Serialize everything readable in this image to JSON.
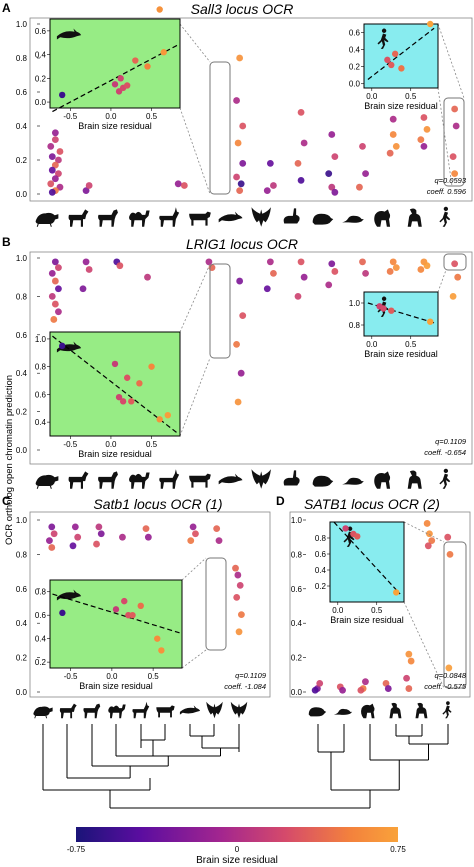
{
  "figure": {
    "y_axis_label": "OCR ortholog open chromatin prediction",
    "colorbar": {
      "label": "Brain size residual",
      "min": -0.75,
      "max": 0.75,
      "ticks": [
        "-0.75",
        "0",
        "0.75"
      ],
      "colors": [
        "#1a1478",
        "#5b0da0",
        "#a3268f",
        "#d54a6b",
        "#f3813d",
        "#f9a23a"
      ]
    },
    "main_y_ticks": [
      "0.0",
      "0.2",
      "0.4",
      "0.6",
      "0.8",
      "1.0"
    ],
    "inset_x_ticks_wide": [
      "-0.5",
      "0.0",
      "0.5"
    ],
    "inset_x_ticks_small": [
      "0.0",
      "0.5"
    ],
    "inset_x_label": "Brain size residual",
    "inset_colors": {
      "green": "#97ec85",
      "cyan": "#88ecef"
    },
    "silhouette_icons": [
      "rodent-icon",
      "horse-icon",
      "bovid-icon",
      "camel-icon",
      "antelope-icon",
      "cow-icon",
      "dolphin-icon",
      "bat-icon",
      "rabbit-icon",
      "hamster-icon",
      "mouse-icon",
      "lemur-icon",
      "monkey-icon",
      "human-icon"
    ]
  },
  "chart_data": [
    {
      "panel": "A",
      "type": "scatter",
      "title": "Sall3 locus OCR",
      "ylim": [
        0,
        1
      ],
      "q": "q=0.0593",
      "coeff": "coeff. 0.596",
      "points": [
        {
          "x": 1.0,
          "y": 0.36,
          "r": -0.2
        },
        {
          "x": 1.0,
          "y": 0.32,
          "r": 0.1
        },
        {
          "x": 0.85,
          "y": 0.28,
          "r": -0.1
        },
        {
          "x": 1.15,
          "y": 0.25,
          "r": 0.2
        },
        {
          "x": 0.9,
          "y": 0.22,
          "r": -0.3
        },
        {
          "x": 1.1,
          "y": 0.2,
          "r": 0.0
        },
        {
          "x": 1.0,
          "y": 0.17,
          "r": 0.3
        },
        {
          "x": 0.9,
          "y": 0.14,
          "r": -0.4
        },
        {
          "x": 1.1,
          "y": 0.12,
          "r": 0.1
        },
        {
          "x": 1.0,
          "y": 0.09,
          "r": -0.2
        },
        {
          "x": 0.85,
          "y": 0.06,
          "r": 0.2
        },
        {
          "x": 1.15,
          "y": 0.04,
          "r": -0.1
        },
        {
          "x": 1.0,
          "y": 0.02,
          "r": 0.4
        },
        {
          "x": 0.9,
          "y": 0.01,
          "r": -0.5
        },
        {
          "x": 2.0,
          "y": 0.02,
          "r": -0.3
        },
        {
          "x": 2.1,
          "y": 0.05,
          "r": 0.1
        },
        {
          "x": 5.0,
          "y": 0.06,
          "r": -0.2
        },
        {
          "x": 5.2,
          "y": 0.05,
          "r": 0.2
        },
        {
          "x": 7.0,
          "y": 0.8,
          "r": 0.6
        },
        {
          "x": 6.9,
          "y": 0.55,
          "r": -0.1
        },
        {
          "x": 7.1,
          "y": 0.4,
          "r": 0.2
        },
        {
          "x": 6.95,
          "y": 0.3,
          "r": 0.5
        },
        {
          "x": 7.1,
          "y": 0.18,
          "r": -0.3
        },
        {
          "x": 6.9,
          "y": 0.1,
          "r": 0.1
        },
        {
          "x": 7.05,
          "y": 0.06,
          "r": -0.6
        },
        {
          "x": 7.0,
          "y": 0.02,
          "r": 0.3
        },
        {
          "x": 8.0,
          "y": 0.18,
          "r": -0.4
        },
        {
          "x": 8.1,
          "y": 0.05,
          "r": 0.0
        },
        {
          "x": 7.9,
          "y": 0.02,
          "r": -0.2
        },
        {
          "x": 9.0,
          "y": 0.48,
          "r": 0.2
        },
        {
          "x": 9.1,
          "y": 0.3,
          "r": -0.1
        },
        {
          "x": 8.9,
          "y": 0.18,
          "r": 0.3
        },
        {
          "x": 9.0,
          "y": 0.08,
          "r": -0.5
        },
        {
          "x": 10.0,
          "y": 0.35,
          "r": -0.2
        },
        {
          "x": 10.1,
          "y": 0.22,
          "r": 0.1
        },
        {
          "x": 9.9,
          "y": 0.12,
          "r": -0.6
        },
        {
          "x": 10.0,
          "y": 0.04,
          "r": 0.0
        },
        {
          "x": 10.1,
          "y": 0.01,
          "r": -0.3
        },
        {
          "x": 11.0,
          "y": 0.28,
          "r": 0.1
        },
        {
          "x": 11.1,
          "y": 0.12,
          "r": -0.2
        },
        {
          "x": 10.9,
          "y": 0.04,
          "r": 0.3
        },
        {
          "x": 12.0,
          "y": 0.35,
          "r": 0.5
        },
        {
          "x": 12.1,
          "y": 0.28,
          "r": 0.6
        },
        {
          "x": 11.9,
          "y": 0.24,
          "r": 0.3
        },
        {
          "x": 12.0,
          "y": 0.44,
          "r": -0.1
        },
        {
          "x": 13.0,
          "y": 0.45,
          "r": 0.2
        },
        {
          "x": 13.1,
          "y": 0.38,
          "r": 0.6
        },
        {
          "x": 12.9,
          "y": 0.32,
          "r": 0.4
        },
        {
          "x": 13.0,
          "y": 0.28,
          "r": -0.2
        },
        {
          "x": 14.0,
          "y": 0.5,
          "r": 0.3
        },
        {
          "x": 14.05,
          "y": 0.4,
          "r": -0.1
        },
        {
          "x": 13.95,
          "y": 0.22,
          "r": 0.2
        },
        {
          "x": 14.0,
          "y": 0.12,
          "r": 0.5
        }
      ]
    },
    {
      "panel": "A-inset-left",
      "type": "scatter",
      "xlabel": "Brain size residual",
      "xlim": [
        -0.75,
        0.85
      ],
      "ylim": [
        -0.05,
        0.7
      ],
      "y_ticks": [
        "0.0",
        "0.2",
        "0.4",
        "0.6"
      ],
      "points": [
        {
          "x": -0.6,
          "y": 0.06,
          "r": -0.6
        },
        {
          "x": 0.05,
          "y": 0.15,
          "r": 0.05
        },
        {
          "x": 0.1,
          "y": 0.09,
          "r": 0.1
        },
        {
          "x": 0.15,
          "y": 0.12,
          "r": 0.15
        },
        {
          "x": 0.12,
          "y": 0.2,
          "r": 0.12
        },
        {
          "x": 0.2,
          "y": 0.14,
          "r": 0.2
        },
        {
          "x": 0.3,
          "y": 0.35,
          "r": 0.3
        },
        {
          "x": 0.45,
          "y": 0.3,
          "r": 0.45
        },
        {
          "x": 0.6,
          "y": 0.78,
          "r": 0.6
        },
        {
          "x": 0.65,
          "y": 0.42,
          "r": 0.65
        }
      ],
      "fit_line": {
        "x": [
          -0.72,
          0.82
        ],
        "y": [
          -0.08,
          0.48
        ]
      }
    },
    {
      "panel": "A-inset-right",
      "type": "scatter",
      "xlabel": "Brain size residual",
      "xlim": [
        -0.1,
        0.85
      ],
      "ylim": [
        -0.05,
        0.7
      ],
      "y_ticks": [
        "0.0",
        "0.2",
        "0.4",
        "0.6"
      ],
      "points": [
        {
          "x": 0.2,
          "y": 0.28,
          "r": 0.2
        },
        {
          "x": 0.25,
          "y": 0.22,
          "r": 0.25
        },
        {
          "x": 0.3,
          "y": 0.35,
          "r": 0.3
        },
        {
          "x": 0.38,
          "y": 0.18,
          "r": 0.38
        },
        {
          "x": 0.75,
          "y": 0.7,
          "r": 0.75
        }
      ],
      "fit_line": {
        "x": [
          -0.05,
          0.8
        ],
        "y": [
          0.05,
          0.65
        ]
      }
    },
    {
      "panel": "B",
      "type": "scatter",
      "title": "LRIG1 locus OCR",
      "ylim": [
        0,
        1
      ],
      "q": "q=0.1109",
      "coeff": "coeff. -0.654",
      "points": [
        {
          "x": 1.0,
          "y": 0.98,
          "r": -0.3
        },
        {
          "x": 1.1,
          "y": 0.95,
          "r": 0.1
        },
        {
          "x": 0.9,
          "y": 0.92,
          "r": -0.2
        },
        {
          "x": 1.0,
          "y": 0.88,
          "r": 0.3
        },
        {
          "x": 1.1,
          "y": 0.84,
          "r": -0.4
        },
        {
          "x": 0.9,
          "y": 0.8,
          "r": 0.0
        },
        {
          "x": 1.0,
          "y": 0.76,
          "r": 0.2
        },
        {
          "x": 1.1,
          "y": 0.72,
          "r": -0.1
        },
        {
          "x": 0.95,
          "y": 0.68,
          "r": 0.4
        },
        {
          "x": 2.0,
          "y": 0.98,
          "r": -0.2
        },
        {
          "x": 2.1,
          "y": 0.94,
          "r": 0.1
        },
        {
          "x": 1.9,
          "y": 0.84,
          "r": -0.3
        },
        {
          "x": 3.0,
          "y": 0.98,
          "r": -0.5
        },
        {
          "x": 3.1,
          "y": 0.96,
          "r": 0.2
        },
        {
          "x": 4.0,
          "y": 0.9,
          "r": 0.0
        },
        {
          "x": 6.0,
          "y": 0.98,
          "r": -0.1
        },
        {
          "x": 6.1,
          "y": 0.95,
          "r": 0.3
        },
        {
          "x": 7.0,
          "y": 0.88,
          "r": -0.3
        },
        {
          "x": 7.1,
          "y": 0.7,
          "r": 0.2
        },
        {
          "x": 6.9,
          "y": 0.55,
          "r": 0.4
        },
        {
          "x": 7.05,
          "y": 0.4,
          "r": -0.2
        },
        {
          "x": 6.95,
          "y": 0.25,
          "r": 0.6
        },
        {
          "x": 8.0,
          "y": 0.98,
          "r": -0.1
        },
        {
          "x": 8.1,
          "y": 0.92,
          "r": 0.3
        },
        {
          "x": 7.9,
          "y": 0.84,
          "r": -0.4
        },
        {
          "x": 9.0,
          "y": 0.98,
          "r": 0.2
        },
        {
          "x": 9.1,
          "y": 0.9,
          "r": -0.2
        },
        {
          "x": 8.9,
          "y": 0.8,
          "r": 0.1
        },
        {
          "x": 10.0,
          "y": 0.97,
          "r": -0.3
        },
        {
          "x": 10.1,
          "y": 0.93,
          "r": 0.2
        },
        {
          "x": 9.9,
          "y": 0.86,
          "r": -0.1
        },
        {
          "x": 11.0,
          "y": 0.98,
          "r": 0.3
        },
        {
          "x": 11.1,
          "y": 0.92,
          "r": 0.0
        },
        {
          "x": 12.0,
          "y": 0.98,
          "r": 0.5
        },
        {
          "x": 12.1,
          "y": 0.95,
          "r": 0.6
        },
        {
          "x": 11.9,
          "y": 0.93,
          "r": 0.4
        },
        {
          "x": 13.0,
          "y": 0.98,
          "r": 0.6
        },
        {
          "x": 13.1,
          "y": 0.96,
          "r": 0.7
        },
        {
          "x": 12.9,
          "y": 0.94,
          "r": 0.5
        },
        {
          "x": 14.0,
          "y": 0.97,
          "r": 0.2
        },
        {
          "x": 14.1,
          "y": 0.9,
          "r": 0.4
        },
        {
          "x": 13.95,
          "y": 0.8,
          "r": 0.7
        }
      ]
    },
    {
      "panel": "B-inset-left",
      "type": "scatter",
      "xlabel": "Brain size residual",
      "xlim": [
        -0.75,
        0.85
      ],
      "ylim": [
        0.3,
        1.05
      ],
      "y_ticks": [
        "0.4",
        "0.6",
        "0.8",
        "1.0"
      ],
      "points": [
        {
          "x": -0.6,
          "y": 0.95,
          "r": -0.6
        },
        {
          "x": 0.05,
          "y": 0.82,
          "r": 0.05
        },
        {
          "x": 0.1,
          "y": 0.58,
          "r": 0.1
        },
        {
          "x": 0.15,
          "y": 0.55,
          "r": 0.15
        },
        {
          "x": 0.2,
          "y": 0.72,
          "r": 0.2
        },
        {
          "x": 0.25,
          "y": 0.55,
          "r": 0.25
        },
        {
          "x": 0.35,
          "y": 0.68,
          "r": 0.35
        },
        {
          "x": 0.5,
          "y": 0.8,
          "r": 0.5
        },
        {
          "x": 0.6,
          "y": 0.42,
          "r": 0.6
        },
        {
          "x": 0.7,
          "y": 0.45,
          "r": 0.7
        }
      ],
      "fit_line": {
        "x": [
          -0.72,
          0.82
        ],
        "y": [
          1.02,
          0.32
        ]
      }
    },
    {
      "panel": "B-inset-right",
      "type": "scatter",
      "xlabel": "Brain size residual",
      "xlim": [
        -0.1,
        0.85
      ],
      "ylim": [
        0.7,
        1.1
      ],
      "y_ticks": [
        "0.8",
        "1.0"
      ],
      "points": [
        {
          "x": 0.1,
          "y": 0.97,
          "r": 0.1
        },
        {
          "x": 0.15,
          "y": 0.95,
          "r": 0.15
        },
        {
          "x": 0.25,
          "y": 0.93,
          "r": 0.25
        },
        {
          "x": 0.75,
          "y": 0.83,
          "r": 0.75
        }
      ],
      "fit_line": {
        "x": [
          -0.05,
          0.8
        ],
        "y": [
          1.0,
          0.82
        ]
      }
    },
    {
      "panel": "C",
      "type": "scatter",
      "title": "Satb1 locus OCR (1)",
      "ylim": [
        0,
        1
      ],
      "q": "q=0.1109",
      "coeff": "coeff. -1.084",
      "points": [
        {
          "x": 1.0,
          "y": 0.96,
          "r": -0.3
        },
        {
          "x": 1.1,
          "y": 0.92,
          "r": 0.1
        },
        {
          "x": 0.9,
          "y": 0.88,
          "r": -0.2
        },
        {
          "x": 1.0,
          "y": 0.84,
          "r": 0.3
        },
        {
          "x": 2.0,
          "y": 0.96,
          "r": -0.2
        },
        {
          "x": 2.1,
          "y": 0.9,
          "r": 0.1
        },
        {
          "x": 1.9,
          "y": 0.85,
          "r": -0.4
        },
        {
          "x": 3.0,
          "y": 0.96,
          "r": 0.0
        },
        {
          "x": 3.1,
          "y": 0.92,
          "r": -0.3
        },
        {
          "x": 2.9,
          "y": 0.86,
          "r": 0.2
        },
        {
          "x": 4.0,
          "y": 0.9,
          "r": -0.1
        },
        {
          "x": 5.0,
          "y": 0.95,
          "r": 0.3
        },
        {
          "x": 5.1,
          "y": 0.9,
          "r": -0.2
        },
        {
          "x": 7.0,
          "y": 0.96,
          "r": -0.2
        },
        {
          "x": 7.1,
          "y": 0.92,
          "r": 0.2
        },
        {
          "x": 6.9,
          "y": 0.88,
          "r": 0.4
        },
        {
          "x": 8.0,
          "y": 0.95,
          "r": 0.3
        },
        {
          "x": 8.1,
          "y": 0.88,
          "r": -0.1
        },
        {
          "x": 8.8,
          "y": 0.72,
          "r": 0.3
        },
        {
          "x": 8.9,
          "y": 0.68,
          "r": -0.1
        },
        {
          "x": 9.0,
          "y": 0.62,
          "r": 0.1
        },
        {
          "x": 8.85,
          "y": 0.55,
          "r": 0.2
        },
        {
          "x": 9.05,
          "y": 0.45,
          "r": 0.4
        },
        {
          "x": 8.95,
          "y": 0.35,
          "r": 0.6
        }
      ]
    },
    {
      "panel": "C-inset",
      "type": "scatter",
      "xlabel": "Brain size residual",
      "xlim": [
        -0.75,
        0.85
      ],
      "ylim": [
        0.15,
        0.9
      ],
      "y_ticks": [
        "0.2",
        "0.4",
        "0.6",
        "0.8"
      ],
      "points": [
        {
          "x": -0.6,
          "y": 0.62,
          "r": -0.6
        },
        {
          "x": 0.05,
          "y": 0.65,
          "r": 0.05
        },
        {
          "x": 0.15,
          "y": 0.72,
          "r": 0.15
        },
        {
          "x": 0.2,
          "y": 0.6,
          "r": 0.2
        },
        {
          "x": 0.25,
          "y": 0.6,
          "r": 0.25
        },
        {
          "x": 0.35,
          "y": 0.68,
          "r": 0.35
        },
        {
          "x": 0.55,
          "y": 0.4,
          "r": 0.55
        },
        {
          "x": 0.6,
          "y": 0.3,
          "r": 0.6
        }
      ],
      "fit_line": {
        "x": [
          -0.72,
          0.82
        ],
        "y": [
          0.78,
          0.45
        ]
      }
    },
    {
      "panel": "D",
      "type": "scatter",
      "title": "SATB1 locus OCR (2)",
      "ylim": [
        0,
        1
      ],
      "q": "q=0.0848",
      "coeff": "coeff. -0.575",
      "points": [
        {
          "x": 1.0,
          "y": 0.02,
          "r": -0.3
        },
        {
          "x": 1.1,
          "y": 0.05,
          "r": 0.1
        },
        {
          "x": 0.9,
          "y": 0.01,
          "r": -0.5
        },
        {
          "x": 2.0,
          "y": 0.03,
          "r": 0.2
        },
        {
          "x": 2.1,
          "y": 0.01,
          "r": -0.2
        },
        {
          "x": 3.0,
          "y": 0.02,
          "r": 0.4
        },
        {
          "x": 3.1,
          "y": 0.06,
          "r": -0.1
        },
        {
          "x": 2.9,
          "y": 0.01,
          "r": 0.2
        },
        {
          "x": 4.0,
          "y": 0.05,
          "r": 0.3
        },
        {
          "x": 4.1,
          "y": 0.02,
          "r": -0.3
        },
        {
          "x": 5.0,
          "y": 0.22,
          "r": 0.6
        },
        {
          "x": 5.1,
          "y": 0.18,
          "r": 0.5
        },
        {
          "x": 4.9,
          "y": 0.08,
          "r": 0.1
        },
        {
          "x": 5.0,
          "y": 0.02,
          "r": 0.3
        },
        {
          "x": 5.8,
          "y": 0.98,
          "r": 0.5
        },
        {
          "x": 5.9,
          "y": 0.92,
          "r": 0.6
        },
        {
          "x": 6.0,
          "y": 0.88,
          "r": 0.4
        },
        {
          "x": 5.85,
          "y": 0.85,
          "r": 0.2
        },
        {
          "x": 6.7,
          "y": 0.9,
          "r": 0.2
        },
        {
          "x": 6.8,
          "y": 0.8,
          "r": 0.4
        },
        {
          "x": 6.75,
          "y": 0.14,
          "r": 0.7
        }
      ]
    },
    {
      "panel": "D-inset",
      "type": "scatter",
      "xlabel": "Brain size residual",
      "xlim": [
        -0.1,
        0.85
      ],
      "ylim": [
        0.0,
        1.0
      ],
      "y_ticks": [
        "0.2",
        "0.4",
        "0.6",
        "0.8"
      ],
      "points": [
        {
          "x": 0.1,
          "y": 0.92,
          "r": 0.1
        },
        {
          "x": 0.2,
          "y": 0.85,
          "r": 0.2
        },
        {
          "x": 0.25,
          "y": 0.82,
          "r": 0.25
        },
        {
          "x": 0.75,
          "y": 0.12,
          "r": 0.75
        }
      ],
      "fit_line": {
        "x": [
          -0.05,
          0.8
        ],
        "y": [
          1.0,
          0.1
        ]
      }
    }
  ]
}
